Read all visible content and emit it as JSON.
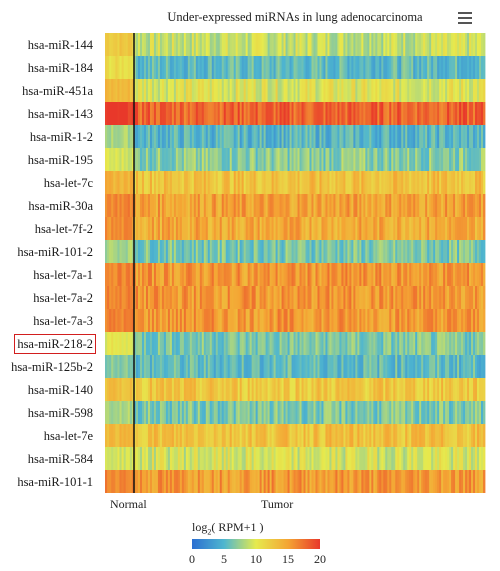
{
  "chart_data": {
    "type": "heatmap",
    "title": "Under-expressed miRNAs in lung adenocarcinoma",
    "rows": [
      {
        "name": "hsa-miR-144",
        "normal": 12.5,
        "tumor": 9.0,
        "highlighted": false
      },
      {
        "name": "hsa-miR-184",
        "normal": 11.0,
        "tumor": 5.5,
        "highlighted": false
      },
      {
        "name": "hsa-miR-451a",
        "normal": 13.5,
        "tumor": 10.0,
        "highlighted": false
      },
      {
        "name": "hsa-miR-143",
        "normal": 20.0,
        "tumor": 18.0,
        "highlighted": false
      },
      {
        "name": "hsa-miR-1-2",
        "normal": 8.0,
        "tumor": 5.0,
        "highlighted": false
      },
      {
        "name": "hsa-miR-195",
        "normal": 9.5,
        "tumor": 7.0,
        "highlighted": false
      },
      {
        "name": "hsa-let-7c",
        "normal": 14.0,
        "tumor": 13.0,
        "highlighted": false
      },
      {
        "name": "hsa-miR-30a",
        "normal": 16.5,
        "tumor": 15.0,
        "highlighted": false
      },
      {
        "name": "hsa-let-7f-2",
        "normal": 16.0,
        "tumor": 14.5,
        "highlighted": false
      },
      {
        "name": "hsa-miR-101-2",
        "normal": 8.0,
        "tumor": 6.5,
        "highlighted": false
      },
      {
        "name": "hsa-let-7a-1",
        "normal": 16.5,
        "tumor": 15.5,
        "highlighted": false
      },
      {
        "name": "hsa-let-7a-2",
        "normal": 16.5,
        "tumor": 15.5,
        "highlighted": false
      },
      {
        "name": "hsa-let-7a-3",
        "normal": 16.5,
        "tumor": 15.5,
        "highlighted": false
      },
      {
        "name": "hsa-miR-218-2",
        "normal": 10.0,
        "tumor": 6.5,
        "highlighted": true
      },
      {
        "name": "hsa-miR-125b-2",
        "normal": 7.0,
        "tumor": 5.5,
        "highlighted": false
      },
      {
        "name": "hsa-miR-140",
        "normal": 13.0,
        "tumor": 12.5,
        "highlighted": false
      },
      {
        "name": "hsa-miR-598",
        "normal": 8.0,
        "tumor": 6.5,
        "highlighted": false
      },
      {
        "name": "hsa-let-7e",
        "normal": 13.5,
        "tumor": 13.0,
        "highlighted": false
      },
      {
        "name": "hsa-miR-584",
        "normal": 9.5,
        "tumor": 9.5,
        "highlighted": false
      },
      {
        "name": "hsa-miR-101-1",
        "normal": 16.5,
        "tumor": 15.5,
        "highlighted": false
      }
    ],
    "column_groups": [
      "Normal",
      "Tumor"
    ],
    "colorbar": {
      "title_prefix": "log",
      "title_sub": "2",
      "title_suffix": "( RPM+1 )",
      "ticks": [
        0,
        5,
        10,
        15,
        20
      ],
      "range": [
        0,
        20
      ],
      "colors": [
        "#2b6fd1",
        "#4fb6cf",
        "#e6ea4e",
        "#f4a534",
        "#e8382a"
      ]
    }
  },
  "ui": {
    "menu_icon": "hamburger-menu-icon"
  }
}
